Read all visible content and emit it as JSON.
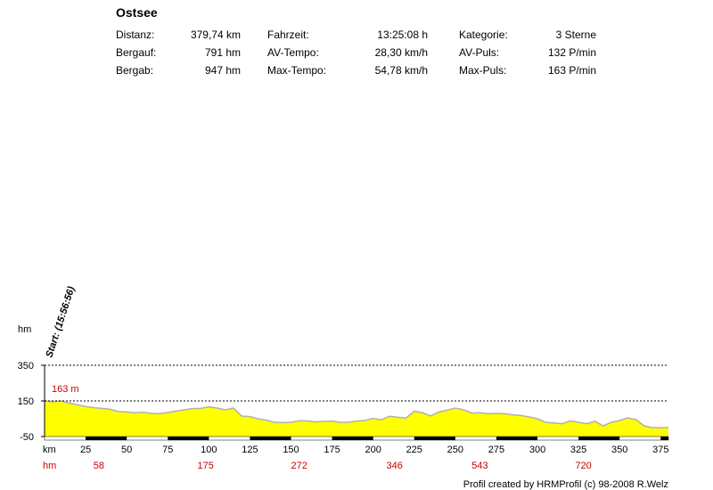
{
  "title": "Ostsee",
  "stats": [
    {
      "label": "Distanz:",
      "value": "379,74 km",
      "label2": "Fahrzeit:",
      "value2": "13:25:08 h",
      "label3": "Kategorie:",
      "value3": "3 Sterne"
    },
    {
      "label": "Bergauf:",
      "value": "791 hm",
      "label2": "AV-Tempo:",
      "value2": "28,30 km/h",
      "label3": "AV-Puls:",
      "value3": "132 P/min"
    },
    {
      "label": "Bergab:",
      "value": "947 hm",
      "label2": "Max-Tempo:",
      "value2": "54,78 km/h",
      "label3": "Max-Puls:",
      "value3": "163 P/min"
    }
  ],
  "footer": "Profil created by HRMProfil (c) 98-2008 R.Welz",
  "chart_data": {
    "type": "area",
    "ylabel": "hm",
    "yticks": [
      350,
      150,
      -50
    ],
    "ylim": [
      -50,
      350
    ],
    "xlim": [
      0,
      379.74
    ],
    "x_axis_label": "km",
    "xticks": [
      25,
      50,
      75,
      100,
      125,
      150,
      175,
      200,
      225,
      250,
      275,
      300,
      325,
      350,
      375
    ],
    "hm_axis_label": "hm",
    "hm_marks": [
      {
        "km": 33,
        "hm": "58"
      },
      {
        "km": 98,
        "hm": "175"
      },
      {
        "km": 155,
        "hm": "272"
      },
      {
        "km": 213,
        "hm": "346"
      },
      {
        "km": 265,
        "hm": "543"
      },
      {
        "km": 328,
        "hm": "720"
      }
    ],
    "max_label": "163 m",
    "start_label": "Start: (15:56:56)",
    "fill_color": "#ffff00",
    "line_color": "#b0b0b0",
    "label_color": "#cc0000",
    "grid_lines": [
      350,
      150
    ],
    "x": [
      0,
      5,
      10,
      15,
      20,
      25,
      30,
      35,
      40,
      45,
      50,
      55,
      60,
      65,
      70,
      75,
      80,
      85,
      90,
      95,
      100,
      105,
      110,
      115,
      120,
      125,
      130,
      135,
      140,
      145,
      150,
      155,
      160,
      165,
      170,
      175,
      180,
      185,
      190,
      195,
      200,
      205,
      210,
      215,
      220,
      225,
      230,
      235,
      240,
      245,
      250,
      255,
      260,
      265,
      270,
      275,
      280,
      285,
      290,
      295,
      300,
      305,
      310,
      315,
      320,
      325,
      330,
      335,
      340,
      345,
      350,
      355,
      360,
      365,
      370,
      375,
      379.74
    ],
    "y": [
      150,
      145,
      150,
      138,
      128,
      118,
      112,
      108,
      103,
      90,
      88,
      84,
      86,
      80,
      78,
      85,
      93,
      100,
      107,
      108,
      116,
      110,
      100,
      110,
      65,
      62,
      50,
      42,
      30,
      28,
      30,
      38,
      38,
      32,
      35,
      37,
      30,
      30,
      37,
      40,
      52,
      44,
      64,
      58,
      54,
      92,
      84,
      66,
      88,
      98,
      110,
      100,
      82,
      84,
      78,
      80,
      78,
      72,
      68,
      60,
      50,
      30,
      26,
      22,
      38,
      30,
      22,
      36,
      10,
      30,
      40,
      55,
      45,
      10,
      0,
      0,
      0
    ]
  }
}
